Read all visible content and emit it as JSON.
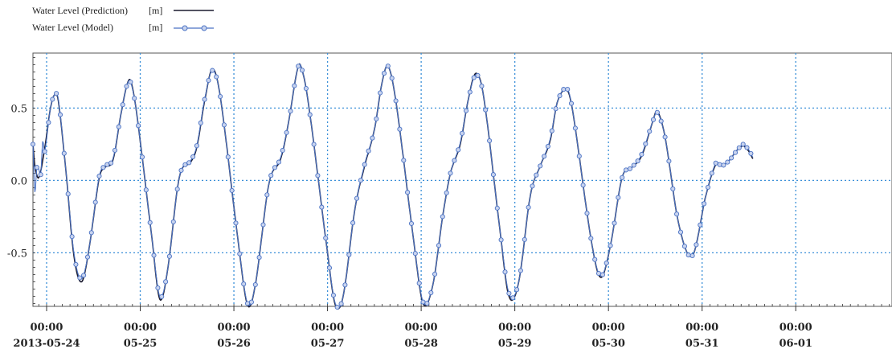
{
  "chart_data": {
    "type": "line",
    "legend": [
      {
        "label": "Water Level (Prediction)",
        "unit": "[m]",
        "color": "#1a1a2e",
        "marker": "none"
      },
      {
        "label": "Water Level (Model)",
        "unit": "[m]",
        "color": "#4a72c4",
        "marker": "circle"
      }
    ],
    "legend_position": "top-left",
    "y_ticks": [
      {
        "value": 0.5,
        "label": "0.5"
      },
      {
        "value": 0.0,
        "label": "0.0"
      },
      {
        "value": -0.5,
        "label": "-0.5"
      }
    ],
    "ylim": [
      -0.87,
      0.88
    ],
    "x_ticks": [
      {
        "day": "2013-05-24",
        "time": "00:00",
        "date": "2013-05-24"
      },
      {
        "day": "2013-05-25",
        "time": "00:00",
        "date": "05-25"
      },
      {
        "day": "2013-05-26",
        "time": "00:00",
        "date": "05-26"
      },
      {
        "day": "2013-05-27",
        "time": "00:00",
        "date": "05-27"
      },
      {
        "day": "2013-05-28",
        "time": "00:00",
        "date": "05-28"
      },
      {
        "day": "2013-05-29",
        "time": "00:00",
        "date": "05-29"
      },
      {
        "day": "2013-05-30",
        "time": "00:00",
        "date": "05-30"
      },
      {
        "day": "2013-05-31",
        "time": "00:00",
        "date": "05-31"
      },
      {
        "day": "2013-06-01",
        "time": "00:00",
        "date": "06-01"
      }
    ],
    "xlim": [
      "2013-05-23 20:30",
      "2013-06-02 00:40"
    ],
    "grid": true,
    "series": [
      {
        "name": "Water Level (Prediction)",
        "color": "#1a1a2e",
        "points": [
          [
            "2013-05-23 20:30",
            0.25
          ],
          [
            "2013-05-23 21:00",
            0.1
          ],
          [
            "2013-05-23 22:00",
            0.02
          ],
          [
            "2013-05-23 23:30",
            0.22
          ],
          [
            "2013-05-24 01:00",
            0.5
          ],
          [
            "2013-05-24 02:00",
            0.59
          ],
          [
            "2013-05-24 03:00",
            0.55
          ],
          [
            "2013-05-24 05:00",
            0.05
          ],
          [
            "2013-05-24 07:00",
            -0.52
          ],
          [
            "2013-05-24 09:00",
            -0.7
          ],
          [
            "2013-05-24 11:00",
            -0.45
          ],
          [
            "2013-05-24 13:30",
            0.02
          ],
          [
            "2013-05-24 15:00",
            0.09
          ],
          [
            "2013-05-24 17:00",
            0.14
          ],
          [
            "2013-05-24 19:00",
            0.45
          ],
          [
            "2013-05-24 20:30",
            0.65
          ],
          [
            "2013-05-24 21:30",
            0.69
          ],
          [
            "2013-05-24 23:00",
            0.48
          ],
          [
            "2013-05-25 03:00",
            -0.4
          ],
          [
            "2013-05-25 05:00",
            -0.82
          ],
          [
            "2013-05-25 07:00",
            -0.62
          ],
          [
            "2013-05-25 10:00",
            0.02
          ],
          [
            "2013-05-25 13:00",
            0.13
          ],
          [
            "2013-05-25 14:30",
            0.23
          ],
          [
            "2013-05-25 16:30",
            0.55
          ],
          [
            "2013-05-25 18:30",
            0.77
          ],
          [
            "2013-05-25 20:30",
            0.58
          ],
          [
            "2013-05-26 01:00",
            -0.4
          ],
          [
            "2013-05-26 03:30",
            -0.86
          ],
          [
            "2013-05-26 05:30",
            -0.72
          ],
          [
            "2013-05-26 09:00",
            -0.02
          ],
          [
            "2013-05-26 12:00",
            0.15
          ],
          [
            "2013-05-26 14:00",
            0.4
          ],
          [
            "2013-05-26 16:00",
            0.73
          ],
          [
            "2013-05-26 17:00",
            0.8
          ],
          [
            "2013-05-26 19:00",
            0.55
          ],
          [
            "2013-05-27 00:00",
            -0.5
          ],
          [
            "2013-05-27 02:00",
            -0.86
          ],
          [
            "2013-05-27 04:00",
            -0.8
          ],
          [
            "2013-05-27 07:00",
            -0.2
          ],
          [
            "2013-05-27 09:30",
            0.1
          ],
          [
            "2013-05-27 12:00",
            0.35
          ],
          [
            "2013-05-27 14:00",
            0.68
          ],
          [
            "2013-05-27 15:30",
            0.79
          ],
          [
            "2013-05-27 17:30",
            0.55
          ],
          [
            "2013-05-27 22:00",
            -0.4
          ],
          [
            "2013-05-28 00:30",
            -0.85
          ],
          [
            "2013-05-28 03:00",
            -0.72
          ],
          [
            "2013-05-28 05:30",
            -0.25
          ],
          [
            "2013-05-28 07:30",
            0.05
          ],
          [
            "2013-05-28 10:00",
            0.25
          ],
          [
            "2013-05-28 12:00",
            0.55
          ],
          [
            "2013-05-28 14:00",
            0.74
          ],
          [
            "2013-05-28 16:00",
            0.58
          ],
          [
            "2013-05-28 20:00",
            -0.3
          ],
          [
            "2013-05-28 22:30",
            -0.8
          ],
          [
            "2013-05-29 01:00",
            -0.7
          ],
          [
            "2013-05-29 04:00",
            -0.1
          ],
          [
            "2013-05-29 06:30",
            0.1
          ],
          [
            "2013-05-29 09:00",
            0.27
          ],
          [
            "2013-05-29 11:00",
            0.55
          ],
          [
            "2013-05-29 13:30",
            0.62
          ],
          [
            "2013-05-29 15:00",
            0.45
          ],
          [
            "2013-05-29 19:30",
            -0.4
          ],
          [
            "2013-05-29 22:00",
            -0.67
          ],
          [
            "2013-05-30 00:30",
            -0.45
          ],
          [
            "2013-05-30 03:30",
            0.02
          ],
          [
            "2013-05-30 06:00",
            0.09
          ],
          [
            "2013-05-30 08:30",
            0.17
          ],
          [
            "2013-05-30 11:30",
            0.42
          ],
          [
            "2013-05-30 12:30",
            0.48
          ],
          [
            "2013-05-30 14:30",
            0.3
          ],
          [
            "2013-05-30 18:00",
            -0.3
          ],
          [
            "2013-05-30 21:30",
            -0.52
          ],
          [
            "2013-05-31 01:00",
            -0.1
          ],
          [
            "2013-05-31 03:30",
            0.11
          ],
          [
            "2013-05-31 05:00",
            0.1
          ],
          [
            "2013-05-31 07:00",
            0.14
          ],
          [
            "2013-05-31 09:00",
            0.21
          ],
          [
            "2013-05-31 10:30",
            0.24
          ],
          [
            "2013-05-31 11:00",
            0.23
          ],
          [
            "2013-05-31 12:00",
            0.2
          ],
          [
            "2013-05-31 13:00",
            0.15
          ]
        ]
      },
      {
        "name": "Water Level (Model)",
        "color": "#4a72c4",
        "marker_interval_minutes": 60,
        "points": [
          [
            "2013-05-23 20:30",
            0.25
          ],
          [
            "2013-05-23 21:00",
            -0.08
          ],
          [
            "2013-05-23 21:30",
            0.09
          ],
          [
            "2013-05-23 22:00",
            0.08
          ],
          [
            "2013-05-23 22:30",
            0.04
          ],
          [
            "2013-05-23 23:00",
            0.27
          ],
          [
            "2013-05-23 23:30",
            0.2
          ],
          [
            "2013-05-24 01:00",
            0.5
          ],
          [
            "2013-05-24 02:00",
            0.59
          ],
          [
            "2013-05-24 03:00",
            0.56
          ],
          [
            "2013-05-24 05:00",
            0.05
          ],
          [
            "2013-05-24 07:00",
            -0.5
          ],
          [
            "2013-05-24 09:00",
            -0.68
          ],
          [
            "2013-05-24 11:00",
            -0.45
          ],
          [
            "2013-05-24 13:30",
            0.03
          ],
          [
            "2013-05-24 15:00",
            0.1
          ],
          [
            "2013-05-24 17:00",
            0.15
          ],
          [
            "2013-05-24 19:00",
            0.45
          ],
          [
            "2013-05-24 20:30",
            0.65
          ],
          [
            "2013-05-24 21:30",
            0.68
          ],
          [
            "2013-05-24 23:00",
            0.48
          ],
          [
            "2013-05-25 03:00",
            -0.4
          ],
          [
            "2013-05-25 05:00",
            -0.8
          ],
          [
            "2013-05-25 07:00",
            -0.62
          ],
          [
            "2013-05-25 10:00",
            0.02
          ],
          [
            "2013-05-25 13:00",
            0.14
          ],
          [
            "2013-05-25 14:30",
            0.24
          ],
          [
            "2013-05-25 16:30",
            0.56
          ],
          [
            "2013-05-25 18:30",
            0.76
          ],
          [
            "2013-05-25 20:30",
            0.58
          ],
          [
            "2013-05-26 01:00",
            -0.4
          ],
          [
            "2013-05-26 03:30",
            -0.85
          ],
          [
            "2013-05-26 05:30",
            -0.72
          ],
          [
            "2013-05-26 09:00",
            -0.02
          ],
          [
            "2013-05-26 12:00",
            0.16
          ],
          [
            "2013-05-26 14:00",
            0.4
          ],
          [
            "2013-05-26 16:00",
            0.73
          ],
          [
            "2013-05-26 17:00",
            0.8
          ],
          [
            "2013-05-26 19:00",
            0.55
          ],
          [
            "2013-05-27 00:00",
            -0.5
          ],
          [
            "2013-05-27 02:00",
            -0.85
          ],
          [
            "2013-05-27 04:00",
            -0.8
          ],
          [
            "2013-05-27 07:00",
            -0.2
          ],
          [
            "2013-05-27 09:30",
            0.11
          ],
          [
            "2013-05-27 12:00",
            0.35
          ],
          [
            "2013-05-27 14:00",
            0.68
          ],
          [
            "2013-05-27 15:30",
            0.79
          ],
          [
            "2013-05-27 17:30",
            0.55
          ],
          [
            "2013-05-27 22:00",
            -0.4
          ],
          [
            "2013-05-28 00:30",
            -0.84
          ],
          [
            "2013-05-28 03:00",
            -0.72
          ],
          [
            "2013-05-28 05:30",
            -0.25
          ],
          [
            "2013-05-28 07:30",
            0.05
          ],
          [
            "2013-05-28 10:00",
            0.26
          ],
          [
            "2013-05-28 12:00",
            0.55
          ],
          [
            "2013-05-28 14:00",
            0.73
          ],
          [
            "2013-05-28 16:00",
            0.58
          ],
          [
            "2013-05-28 20:00",
            -0.3
          ],
          [
            "2013-05-28 22:30",
            -0.78
          ],
          [
            "2013-05-29 01:00",
            -0.7
          ],
          [
            "2013-05-29 04:00",
            -0.1
          ],
          [
            "2013-05-29 06:30",
            0.1
          ],
          [
            "2013-05-29 09:00",
            0.28
          ],
          [
            "2013-05-29 11:00",
            0.55
          ],
          [
            "2013-05-29 13:30",
            0.63
          ],
          [
            "2013-05-29 15:00",
            0.45
          ],
          [
            "2013-05-29 19:30",
            -0.4
          ],
          [
            "2013-05-29 22:00",
            -0.66
          ],
          [
            "2013-05-30 00:30",
            -0.45
          ],
          [
            "2013-05-30 03:30",
            0.02
          ],
          [
            "2013-05-30 06:00",
            0.09
          ],
          [
            "2013-05-30 08:30",
            0.18
          ],
          [
            "2013-05-30 11:30",
            0.42
          ],
          [
            "2013-05-30 12:30",
            0.47
          ],
          [
            "2013-05-30 14:30",
            0.3
          ],
          [
            "2013-05-30 18:00",
            -0.3
          ],
          [
            "2013-05-30 21:30",
            -0.52
          ],
          [
            "2013-05-31 01:00",
            -0.1
          ],
          [
            "2013-05-31 03:30",
            0.12
          ],
          [
            "2013-05-31 05:00",
            0.1
          ],
          [
            "2013-05-31 07:00",
            0.14
          ],
          [
            "2013-05-31 09:00",
            0.21
          ],
          [
            "2013-05-31 10:30",
            0.25
          ],
          [
            "2013-05-31 11:00",
            0.24
          ],
          [
            "2013-05-31 12:00",
            0.21
          ],
          [
            "2013-05-31 13:00",
            0.16
          ]
        ]
      }
    ]
  }
}
